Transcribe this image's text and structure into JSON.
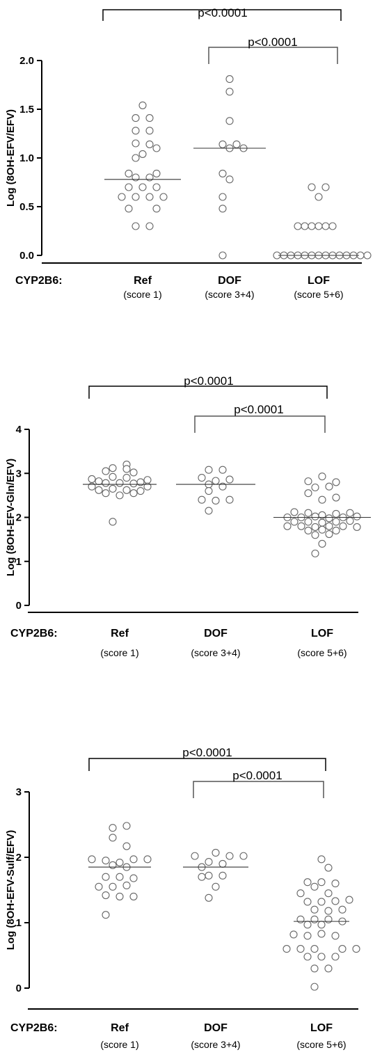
{
  "gene_label": "CYP2B6:",
  "chart_data": [
    {
      "type": "scatter",
      "ylabel": "Log (8OH-EFV/EFV)",
      "ylim": [
        0,
        2.0
      ],
      "yticks": [
        "0.0",
        "0.5",
        "1.0",
        "1.5",
        "2.0"
      ],
      "ytick_values": [
        0,
        0.5,
        1.0,
        1.5,
        2.0
      ],
      "categories": [
        "Ref",
        "DOF",
        "LOF"
      ],
      "subcategories": [
        "(score 1)",
        "(score 3+4)",
        "(score 5+6)"
      ],
      "comparisons": [
        {
          "label": "p<0.0001",
          "from": "Ref",
          "to": "LOF"
        },
        {
          "label": "p<0.0001",
          "from": "DOF",
          "to": "LOF"
        }
      ],
      "groups": [
        {
          "name": "Ref",
          "median": 0.78,
          "points": [
            [
              0,
              1.54
            ],
            [
              -1,
              1.41
            ],
            [
              1,
              1.41
            ],
            [
              -1,
              1.28
            ],
            [
              1,
              1.28
            ],
            [
              -1,
              1.15
            ],
            [
              1,
              1.14
            ],
            [
              0,
              1.04
            ],
            [
              2,
              1.1
            ],
            [
              -1,
              1.0
            ],
            [
              -2,
              0.84
            ],
            [
              2,
              0.84
            ],
            [
              -1,
              0.8
            ],
            [
              1,
              0.8
            ],
            [
              -2,
              0.7
            ],
            [
              0,
              0.7
            ],
            [
              2,
              0.7
            ],
            [
              -3,
              0.6
            ],
            [
              -1,
              0.6
            ],
            [
              1,
              0.6
            ],
            [
              3,
              0.6
            ],
            [
              -2,
              0.48
            ],
            [
              2,
              0.48
            ],
            [
              -1,
              0.3
            ],
            [
              1,
              0.3
            ]
          ]
        },
        {
          "name": "DOF",
          "median": 1.1,
          "points": [
            [
              0,
              1.81
            ],
            [
              0,
              1.68
            ],
            [
              0,
              1.38
            ],
            [
              -1,
              1.14
            ],
            [
              1,
              1.14
            ],
            [
              0,
              1.1
            ],
            [
              2,
              1.1
            ],
            [
              -1,
              0.84
            ],
            [
              0,
              0.78
            ],
            [
              -1,
              0.6
            ],
            [
              -1,
              0.48
            ],
            [
              -1,
              0.0
            ]
          ]
        },
        {
          "name": "LOF",
          "median": 0.0,
          "points": [
            [
              -1,
              0.7
            ],
            [
              1,
              0.7
            ],
            [
              0,
              0.6
            ],
            [
              -3,
              0.3
            ],
            [
              -2,
              0.3
            ],
            [
              -1,
              0.3
            ],
            [
              0,
              0.3
            ],
            [
              1,
              0.3
            ],
            [
              2,
              0.3
            ],
            [
              -6,
              0.0
            ],
            [
              -5,
              0.0
            ],
            [
              -4,
              0.0
            ],
            [
              -3,
              0.0
            ],
            [
              -2,
              0.0
            ],
            [
              -1,
              0.0
            ],
            [
              0,
              0.0
            ],
            [
              1,
              0.0
            ],
            [
              2,
              0.0
            ],
            [
              3,
              0.0
            ],
            [
              4,
              0.0
            ],
            [
              5,
              0.0
            ],
            [
              6,
              0.0
            ],
            [
              7,
              0.0
            ]
          ]
        }
      ]
    },
    {
      "type": "scatter",
      "ylabel": "Log (8OH-EFV-Gln/EFV)",
      "ylim": [
        0,
        4
      ],
      "yticks": [
        "0",
        "1",
        "2",
        "3",
        "4"
      ],
      "ytick_values": [
        0,
        1,
        2,
        3,
        4
      ],
      "categories": [
        "Ref",
        "DOF",
        "LOF"
      ],
      "subcategories": [
        "(score 1)",
        "(score 3+4)",
        "(score 5+6)"
      ],
      "comparisons": [
        {
          "label": "p<0.0001",
          "from": "Ref",
          "to": "LOF"
        },
        {
          "label": "p<0.0001",
          "from": "DOF",
          "to": "LOF"
        }
      ],
      "groups": [
        {
          "name": "Ref",
          "median": 2.75,
          "points": [
            [
              1,
              3.2
            ],
            [
              -1,
              3.12
            ],
            [
              1,
              3.1
            ],
            [
              -2,
              3.05
            ],
            [
              2,
              3.02
            ],
            [
              -1,
              2.92
            ],
            [
              1,
              2.9
            ],
            [
              -4,
              2.87
            ],
            [
              4,
              2.85
            ],
            [
              -3,
              2.82
            ],
            [
              3,
              2.8
            ],
            [
              -2,
              2.78
            ],
            [
              0,
              2.78
            ],
            [
              2,
              2.77
            ],
            [
              -4,
              2.7
            ],
            [
              4,
              2.7
            ],
            [
              -3,
              2.62
            ],
            [
              -1,
              2.65
            ],
            [
              1,
              2.62
            ],
            [
              3,
              2.6
            ],
            [
              -2,
              2.55
            ],
            [
              2,
              2.55
            ],
            [
              0,
              2.5
            ],
            [
              -1,
              1.9
            ]
          ]
        },
        {
          "name": "DOF",
          "median": 2.75,
          "points": [
            [
              -1,
              3.08
            ],
            [
              1,
              3.08
            ],
            [
              -2,
              2.9
            ],
            [
              2,
              2.86
            ],
            [
              0,
              2.83
            ],
            [
              -1,
              2.75
            ],
            [
              1,
              2.7
            ],
            [
              -1,
              2.6
            ],
            [
              -2,
              2.4
            ],
            [
              0,
              2.38
            ],
            [
              2,
              2.4
            ],
            [
              -1,
              2.15
            ]
          ]
        },
        {
          "name": "LOF",
          "median": 2.0,
          "points": [
            [
              0,
              2.93
            ],
            [
              -2,
              2.82
            ],
            [
              2,
              2.8
            ],
            [
              -1,
              2.68
            ],
            [
              1,
              2.7
            ],
            [
              -2,
              2.55
            ],
            [
              2,
              2.45
            ],
            [
              0,
              2.4
            ],
            [
              -4,
              2.12
            ],
            [
              -2,
              2.1
            ],
            [
              0,
              2.05
            ],
            [
              2,
              2.08
            ],
            [
              4,
              2.1
            ],
            [
              -5,
              2.0
            ],
            [
              -3,
              2.0
            ],
            [
              -1,
              2.02
            ],
            [
              1,
              1.98
            ],
            [
              3,
              2.0
            ],
            [
              5,
              2.02
            ],
            [
              -4,
              1.9
            ],
            [
              -2,
              1.9
            ],
            [
              0,
              1.88
            ],
            [
              2,
              1.9
            ],
            [
              4,
              1.92
            ],
            [
              -5,
              1.8
            ],
            [
              -3,
              1.8
            ],
            [
              -1,
              1.78
            ],
            [
              1,
              1.8
            ],
            [
              3,
              1.8
            ],
            [
              5,
              1.78
            ],
            [
              -2,
              1.7
            ],
            [
              0,
              1.72
            ],
            [
              2,
              1.7
            ],
            [
              -1,
              1.6
            ],
            [
              1,
              1.62
            ],
            [
              0,
              1.4
            ],
            [
              -1,
              1.18
            ]
          ]
        }
      ]
    },
    {
      "type": "scatter",
      "ylabel": "Log (8OH-EFV-Sulf/EFV)",
      "ylim": [
        0,
        3
      ],
      "yticks": [
        "0",
        "1",
        "2",
        "3"
      ],
      "ytick_values": [
        0,
        1,
        2,
        3
      ],
      "categories": [
        "Ref",
        "DOF",
        "LOF"
      ],
      "subcategories": [
        "(score 1)",
        "(score 3+4)",
        "(score 5+6)"
      ],
      "comparisons": [
        {
          "label": "p<0.0001",
          "from": "Ref",
          "to": "LOF"
        },
        {
          "label": "p<0.0001",
          "from": "DOF",
          "to": "LOF"
        }
      ],
      "groups": [
        {
          "name": "Ref",
          "median": 1.85,
          "points": [
            [
              1,
              2.48
            ],
            [
              -1,
              2.45
            ],
            [
              -1,
              2.3
            ],
            [
              1,
              2.17
            ],
            [
              -4,
              1.97
            ],
            [
              -2,
              1.95
            ],
            [
              2,
              1.97
            ],
            [
              4,
              1.97
            ],
            [
              0,
              1.92
            ],
            [
              -1,
              1.88
            ],
            [
              1,
              1.85
            ],
            [
              -2,
              1.7
            ],
            [
              0,
              1.7
            ],
            [
              2,
              1.68
            ],
            [
              -3,
              1.55
            ],
            [
              -1,
              1.55
            ],
            [
              1,
              1.57
            ],
            [
              -2,
              1.42
            ],
            [
              0,
              1.4
            ],
            [
              2,
              1.4
            ],
            [
              -2,
              1.12
            ]
          ]
        },
        {
          "name": "DOF",
          "median": 1.85,
          "points": [
            [
              0,
              2.07
            ],
            [
              -3,
              2.02
            ],
            [
              2,
              2.02
            ],
            [
              4,
              2.02
            ],
            [
              -1,
              1.93
            ],
            [
              1,
              1.9
            ],
            [
              -2,
              1.85
            ],
            [
              -1,
              1.72
            ],
            [
              1,
              1.72
            ],
            [
              -2,
              1.7
            ],
            [
              0,
              1.55
            ],
            [
              -1,
              1.38
            ]
          ]
        },
        {
          "name": "LOF",
          "median": 1.02,
          "points": [
            [
              0,
              1.97
            ],
            [
              1,
              1.84
            ],
            [
              -2,
              1.62
            ],
            [
              0,
              1.62
            ],
            [
              2,
              1.6
            ],
            [
              -3,
              1.45
            ],
            [
              -1,
              1.55
            ],
            [
              1,
              1.45
            ],
            [
              -2,
              1.32
            ],
            [
              0,
              1.32
            ],
            [
              2,
              1.33
            ],
            [
              4,
              1.35
            ],
            [
              -1,
              1.2
            ],
            [
              1,
              1.18
            ],
            [
              3,
              1.2
            ],
            [
              -3,
              1.05
            ],
            [
              -1,
              1.05
            ],
            [
              1,
              1.05
            ],
            [
              3,
              1.02
            ],
            [
              -2,
              0.97
            ],
            [
              0,
              0.97
            ],
            [
              -4,
              0.82
            ],
            [
              -2,
              0.8
            ],
            [
              0,
              0.83
            ],
            [
              2,
              0.8
            ],
            [
              -5,
              0.6
            ],
            [
              -3,
              0.6
            ],
            [
              -1,
              0.6
            ],
            [
              3,
              0.6
            ],
            [
              5,
              0.6
            ],
            [
              -2,
              0.48
            ],
            [
              0,
              0.48
            ],
            [
              2,
              0.48
            ],
            [
              -1,
              0.3
            ],
            [
              1,
              0.3
            ],
            [
              -1,
              0.02
            ]
          ]
        }
      ]
    }
  ]
}
